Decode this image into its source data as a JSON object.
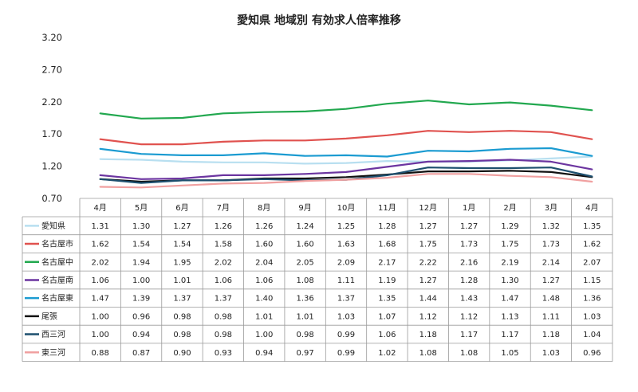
{
  "chart_data": {
    "type": "line",
    "title": "愛知県 地域別 有効求人倍率推移",
    "categories": [
      "4月",
      "5月",
      "6月",
      "7月",
      "8月",
      "9月",
      "10月",
      "11月",
      "12月",
      "1月",
      "2月",
      "3月",
      "4月"
    ],
    "ylim": [
      0.7,
      3.2
    ],
    "yticks": [
      "3.20",
      "2.70",
      "2.20",
      "1.70",
      "1.20",
      "0.70"
    ],
    "grid": false,
    "legend": "data-table",
    "series": [
      {
        "name": "愛知県",
        "color": "#b8dff0",
        "values": [
          1.31,
          1.3,
          1.27,
          1.26,
          1.26,
          1.24,
          1.25,
          1.28,
          1.27,
          1.27,
          1.29,
          1.32,
          1.35
        ],
        "labels": [
          "1.31",
          "1.30",
          "1.27",
          "1.26",
          "1.26",
          "1.24",
          "1.25",
          "1.28",
          "1.27",
          "1.27",
          "1.29",
          "1.32",
          "1.35"
        ]
      },
      {
        "name": "名古屋市",
        "color": "#e0524f",
        "values": [
          1.62,
          1.54,
          1.54,
          1.58,
          1.6,
          1.6,
          1.63,
          1.68,
          1.75,
          1.73,
          1.75,
          1.73,
          1.62
        ],
        "labels": [
          "1.62",
          "1.54",
          "1.54",
          "1.58",
          "1.60",
          "1.60",
          "1.63",
          "1.68",
          "1.75",
          "1.73",
          "1.75",
          "1.73",
          "1.62"
        ]
      },
      {
        "name": "名古屋中",
        "color": "#22a84f",
        "values": [
          2.02,
          1.94,
          1.95,
          2.02,
          2.04,
          2.05,
          2.09,
          2.17,
          2.22,
          2.16,
          2.19,
          2.14,
          2.07
        ],
        "labels": [
          "2.02",
          "1.94",
          "1.95",
          "2.02",
          "2.04",
          "2.05",
          "2.09",
          "2.17",
          "2.22",
          "2.16",
          "2.19",
          "2.14",
          "2.07"
        ]
      },
      {
        "name": "名古屋南",
        "color": "#6c35a0",
        "values": [
          1.06,
          1.0,
          1.01,
          1.06,
          1.06,
          1.08,
          1.11,
          1.19,
          1.27,
          1.28,
          1.3,
          1.27,
          1.15
        ],
        "labels": [
          "1.06",
          "1.00",
          "1.01",
          "1.06",
          "1.06",
          "1.08",
          "1.11",
          "1.19",
          "1.27",
          "1.28",
          "1.30",
          "1.27",
          "1.15"
        ]
      },
      {
        "name": "名古屋東",
        "color": "#1b9bd1",
        "values": [
          1.47,
          1.39,
          1.37,
          1.37,
          1.4,
          1.36,
          1.37,
          1.35,
          1.44,
          1.43,
          1.47,
          1.48,
          1.36
        ],
        "labels": [
          "1.47",
          "1.39",
          "1.37",
          "1.37",
          "1.40",
          "1.36",
          "1.37",
          "1.35",
          "1.44",
          "1.43",
          "1.47",
          "1.48",
          "1.36"
        ]
      },
      {
        "name": "尾張",
        "color": "#111111",
        "values": [
          1.0,
          0.96,
          0.98,
          0.98,
          1.01,
          1.01,
          1.03,
          1.07,
          1.12,
          1.12,
          1.13,
          1.11,
          1.03
        ],
        "labels": [
          "1.00",
          "0.96",
          "0.98",
          "0.98",
          "1.01",
          "1.01",
          "1.03",
          "1.07",
          "1.12",
          "1.12",
          "1.13",
          "1.11",
          "1.03"
        ]
      },
      {
        "name": "西三河",
        "color": "#1d4f6e",
        "values": [
          1.0,
          0.94,
          0.98,
          0.98,
          1.0,
          0.98,
          0.99,
          1.06,
          1.18,
          1.17,
          1.17,
          1.18,
          1.04
        ],
        "labels": [
          "1.00",
          "0.94",
          "0.98",
          "0.98",
          "1.00",
          "0.98",
          "0.99",
          "1.06",
          "1.18",
          "1.17",
          "1.17",
          "1.18",
          "1.04"
        ]
      },
      {
        "name": "東三河",
        "color": "#f0a0a0",
        "values": [
          0.88,
          0.87,
          0.9,
          0.93,
          0.94,
          0.97,
          0.99,
          1.02,
          1.08,
          1.08,
          1.05,
          1.03,
          0.96
        ],
        "labels": [
          "0.88",
          "0.87",
          "0.90",
          "0.93",
          "0.94",
          "0.97",
          "0.99",
          "1.02",
          "1.08",
          "1.08",
          "1.05",
          "1.03",
          "0.96"
        ]
      }
    ]
  }
}
